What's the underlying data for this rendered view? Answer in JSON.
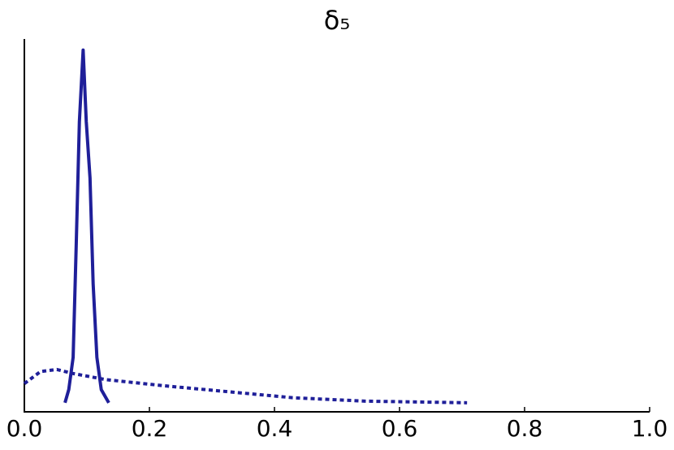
{
  "chart_data": {
    "type": "line",
    "title": "δ₅",
    "series": [
      {
        "color": "#1f1f99",
        "style": "solid",
        "x": [
          0.065,
          0.071,
          0.078,
          0.083,
          0.088,
          0.094,
          0.099,
          0.105,
          0.11,
          0.116,
          0.123,
          0.135
        ],
        "values": [
          0,
          1.3,
          4.5,
          15.8,
          27.9,
          35,
          27.9,
          22.3,
          11.8,
          4.5,
          1.3,
          0
        ]
      },
      {
        "color": "#1f1f99",
        "style": "dotted",
        "x": [
          0,
          0.026,
          0.052,
          0.078,
          0.13,
          0.221,
          0.325,
          0.429,
          0.545,
          0.708
        ],
        "values": [
          1.9,
          3.1,
          3.3,
          2.9,
          2.3,
          1.7,
          1.1,
          0.5,
          0.16,
          0
        ]
      }
    ],
    "xlim": [
      0,
      1
    ],
    "xticks": [
      {
        "value": 0,
        "label": "0.0"
      },
      0.2,
      0.4,
      0.6,
      0.8,
      {
        "value": 1,
        "label": "1.0"
      }
    ],
    "ylim": [
      -0.9,
      36.1
    ],
    "grid": false
  }
}
